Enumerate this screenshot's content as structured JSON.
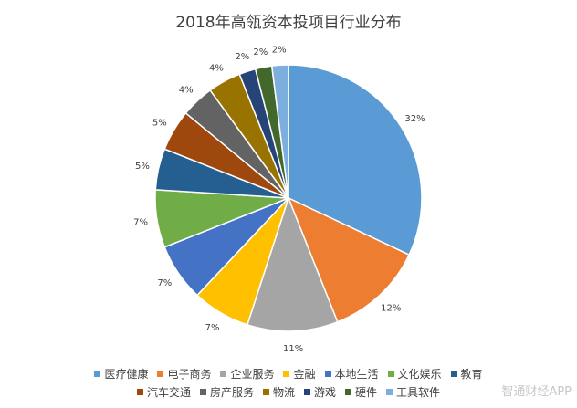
{
  "chart_data": {
    "type": "pie",
    "title": "2018年高瓴资本投项目行业分布",
    "categories": [
      "医疗健康",
      "电子商务",
      "企业服务",
      "金融",
      "本地生活",
      "文化娱乐",
      "教育",
      "汽车交通",
      "房产服务",
      "物流",
      "游戏",
      "硬件",
      "工具软件"
    ],
    "values": [
      32,
      12,
      11,
      7,
      7,
      7,
      5,
      5,
      4,
      4,
      2,
      2,
      2
    ],
    "labels": [
      "32%",
      "12%",
      "11%",
      "7%",
      "7%",
      "7%",
      "5%",
      "5%",
      "4%",
      "4%",
      "2%",
      "2%",
      "2%"
    ],
    "colors": [
      "#5b9bd5",
      "#ed7d31",
      "#a5a5a5",
      "#ffc000",
      "#4472c4",
      "#70ad47",
      "#255e91",
      "#9e480e",
      "#636363",
      "#997300",
      "#264478",
      "#43682b",
      "#7cafdd"
    ],
    "legend_position": "bottom"
  },
  "watermark": "智通财经APP"
}
